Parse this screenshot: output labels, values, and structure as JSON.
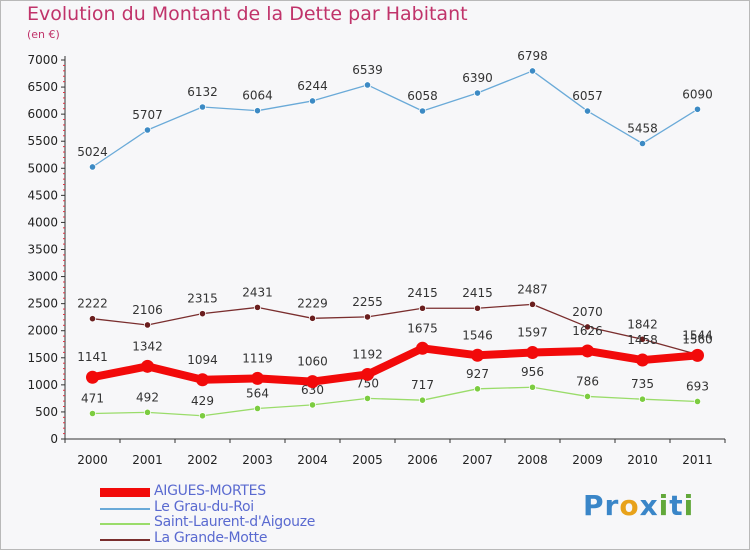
{
  "title": "Evolution du Montant de la Dette par Habitant",
  "subtitle": "(en €)",
  "logo": {
    "text": "Proxiti",
    "letters": [
      "P",
      "r",
      "o",
      "x",
      "i",
      "t",
      "i"
    ],
    "colors": [
      "#3a86c8",
      "#3a86c8",
      "#e8a21a",
      "#3a86c8",
      "#62a83a",
      "#3a86c8",
      "#62a83a"
    ]
  },
  "legend": [
    {
      "label": "AIGUES-MORTES",
      "color": "#f20a0a",
      "text_color": "#5a6ad0"
    },
    {
      "label": "Le Grau-du-Roi",
      "color": "#6aaad8",
      "text_color": "#5a6ad0"
    },
    {
      "label": "Saint-Laurent-d'Aigouze",
      "color": "#9adc6a",
      "text_color": "#5a6ad0"
    },
    {
      "label": "La Grande-Motte",
      "color": "#7a2e2e",
      "text_color": "#5a6ad0"
    }
  ],
  "chart_data": {
    "type": "line",
    "title": "Evolution du Montant de la Dette par Habitant",
    "subtitle": "(en €)",
    "x": [
      "2000",
      "2001",
      "2002",
      "2003",
      "2004",
      "2005",
      "2006",
      "2007",
      "2008",
      "2009",
      "2010",
      "2011"
    ],
    "ylim": [
      0,
      7000
    ],
    "yticks": [
      0,
      500,
      1000,
      1500,
      2000,
      2500,
      3000,
      3500,
      4000,
      4500,
      5000,
      5500,
      6000,
      6500,
      7000
    ],
    "grid": false,
    "legend_position": "bottom-left",
    "series": [
      {
        "name": "Le Grau-du-Roi",
        "color": "#6aaad8",
        "marker": "#3c8ac4",
        "values": [
          5024,
          5707,
          6132,
          6064,
          6244,
          6539,
          6058,
          6390,
          6798,
          6057,
          5458,
          6090
        ]
      },
      {
        "name": "La Grande-Motte",
        "color": "#7a2e2e",
        "marker": "#6a1e1e",
        "values": [
          2222,
          2106,
          2315,
          2431,
          2229,
          2255,
          2415,
          2415,
          2487,
          2070,
          1842,
          1560
        ]
      },
      {
        "name": "Saint-Laurent-d'Aigouze",
        "color": "#9adc6a",
        "marker": "#7ccc40",
        "values": [
          471,
          492,
          429,
          564,
          630,
          750,
          717,
          927,
          956,
          786,
          735,
          693
        ]
      },
      {
        "name": "AIGUES-MORTES",
        "color": "#f20a0a",
        "marker": "#f20a0a",
        "values": [
          1141,
          1342,
          1094,
          1119,
          1060,
          1192,
          1675,
          1546,
          1597,
          1626,
          1458,
          1544
        ]
      }
    ]
  }
}
